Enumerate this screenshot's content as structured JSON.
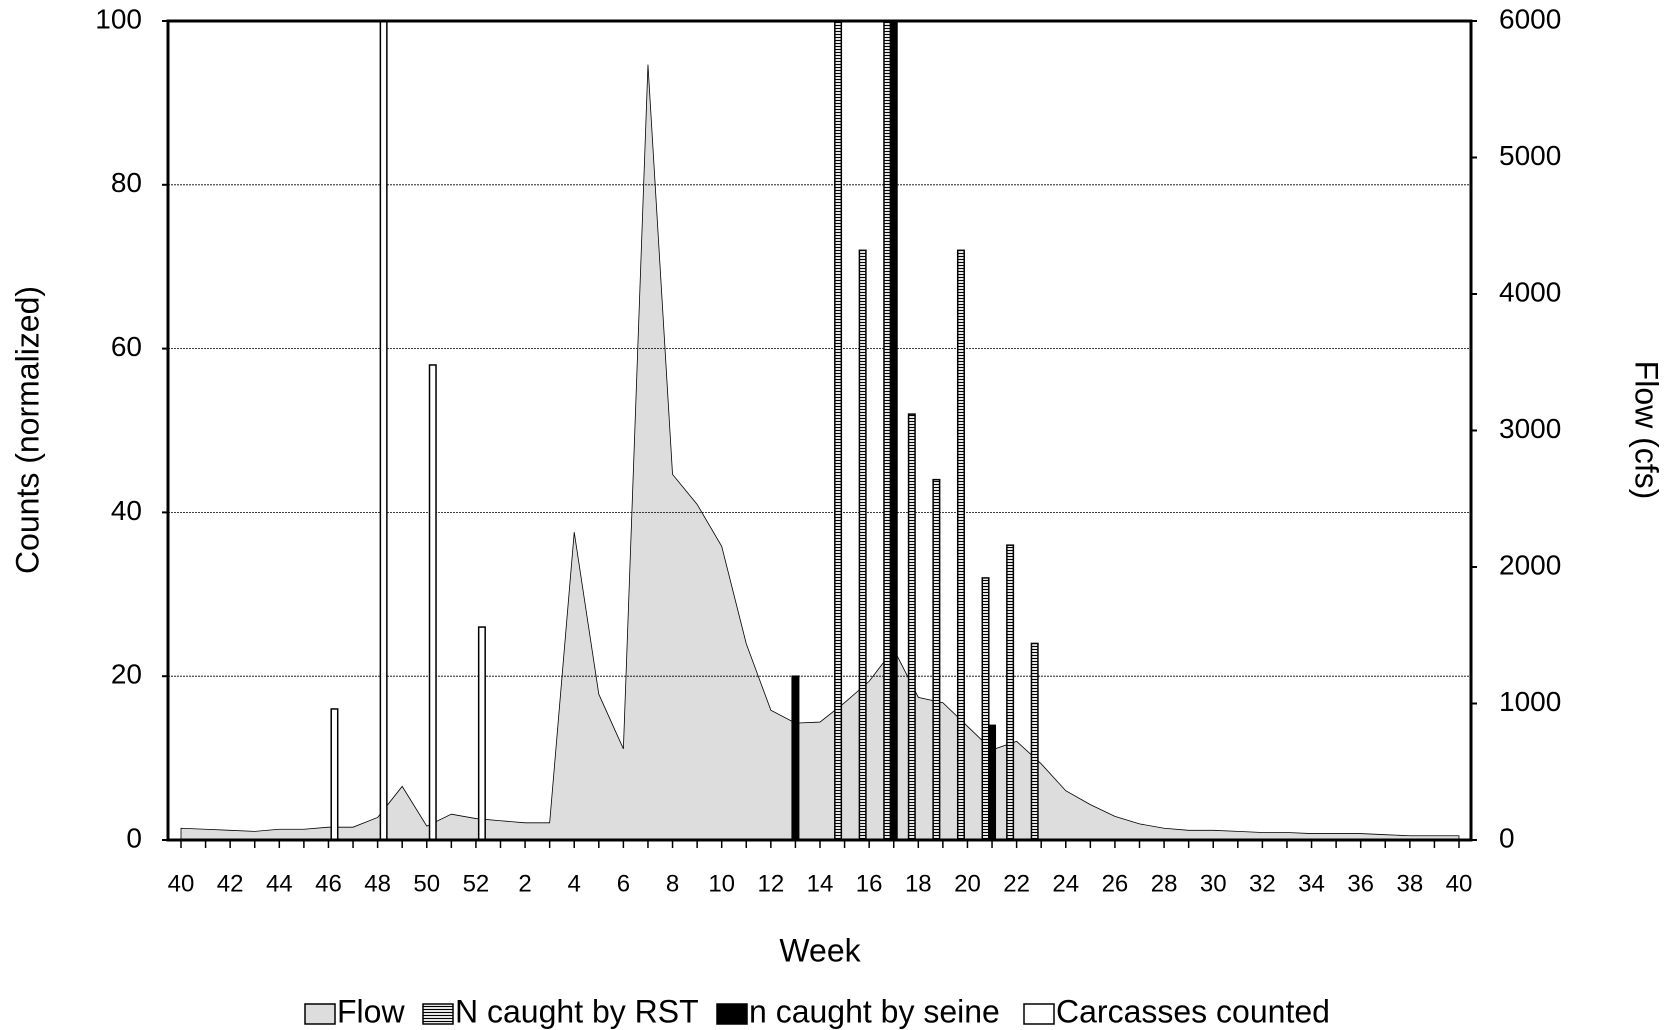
{
  "chart_data": {
    "type": "bar",
    "xlabel": "Week",
    "ylabel": "Counts  (normalized)",
    "y2label": "Flow (cfs)",
    "categories": [
      "40",
      null,
      "42",
      null,
      "44",
      null,
      "46",
      null,
      "48",
      null,
      "50",
      null,
      "52",
      null,
      "2",
      null,
      "4",
      null,
      "6",
      null,
      "8",
      null,
      "10",
      null,
      "12",
      null,
      "14",
      null,
      "16",
      null,
      "18",
      null,
      "20",
      null,
      "22",
      null,
      "24",
      null,
      "26",
      null,
      "28",
      null,
      "30",
      null,
      "32",
      null,
      "34",
      null,
      "36",
      null,
      "38",
      null,
      "40"
    ],
    "ylim": [
      0,
      100
    ],
    "yticks": [
      0,
      20,
      40,
      60,
      80,
      100
    ],
    "y2lim": [
      0,
      6000
    ],
    "y2ticks": [
      0,
      1000,
      2000,
      3000,
      4000,
      5000,
      6000
    ],
    "grid": true,
    "legend": "bottom",
    "series": [
      {
        "name": "Flow",
        "type": "area",
        "axis": "y2",
        "color": "#dddddd",
        "values": [
          86,
          79,
          71,
          63,
          79,
          79,
          94,
          94,
          165,
          393,
          102,
          189,
          157,
          141,
          126,
          126,
          2255,
          1068,
          668,
          5680,
          2679,
          2459,
          2152,
          1438,
          951,
          856,
          864,
          1006,
          1163,
          1398,
          1045,
          1006,
          833,
          660,
          723,
          558,
          361,
          259,
          173,
          118,
          86,
          71,
          71,
          63,
          55,
          55,
          47,
          47,
          47,
          39,
          31,
          31,
          31
        ]
      },
      {
        "name": "N caught by RST",
        "type": "bar",
        "color": "#ffffff",
        "hatch": true,
        "values": [
          null,
          null,
          null,
          null,
          null,
          null,
          null,
          null,
          null,
          null,
          null,
          null,
          null,
          null,
          null,
          null,
          null,
          null,
          null,
          null,
          null,
          null,
          null,
          null,
          null,
          null,
          null,
          100,
          72,
          100,
          52,
          44,
          72,
          32,
          36,
          24,
          null,
          null,
          null,
          null,
          null,
          null,
          null,
          null,
          null,
          null,
          null,
          null,
          null,
          null,
          null,
          null,
          null
        ]
      },
      {
        "name": "n caught by seine",
        "type": "bar",
        "color": "#000000",
        "values": [
          null,
          null,
          null,
          null,
          null,
          null,
          null,
          null,
          null,
          null,
          null,
          null,
          null,
          null,
          null,
          null,
          null,
          null,
          null,
          null,
          null,
          null,
          null,
          null,
          null,
          20,
          null,
          null,
          null,
          100,
          null,
          null,
          null,
          14,
          null,
          null,
          null,
          null,
          null,
          null,
          null,
          null,
          null,
          null,
          null,
          null,
          null,
          null,
          null,
          null,
          null,
          null,
          null
        ]
      },
      {
        "name": "Carcasses counted",
        "type": "bar",
        "color": "#ffffff",
        "values": [
          null,
          null,
          null,
          null,
          null,
          null,
          16,
          null,
          100,
          null,
          58,
          null,
          26,
          null,
          null,
          null,
          null,
          null,
          null,
          null,
          null,
          null,
          null,
          null,
          null,
          null,
          null,
          null,
          null,
          null,
          null,
          null,
          null,
          null,
          null,
          null,
          null,
          null,
          null,
          null,
          null,
          null,
          null,
          null,
          null,
          null,
          null,
          null,
          null,
          null,
          null,
          null,
          null
        ]
      }
    ]
  }
}
